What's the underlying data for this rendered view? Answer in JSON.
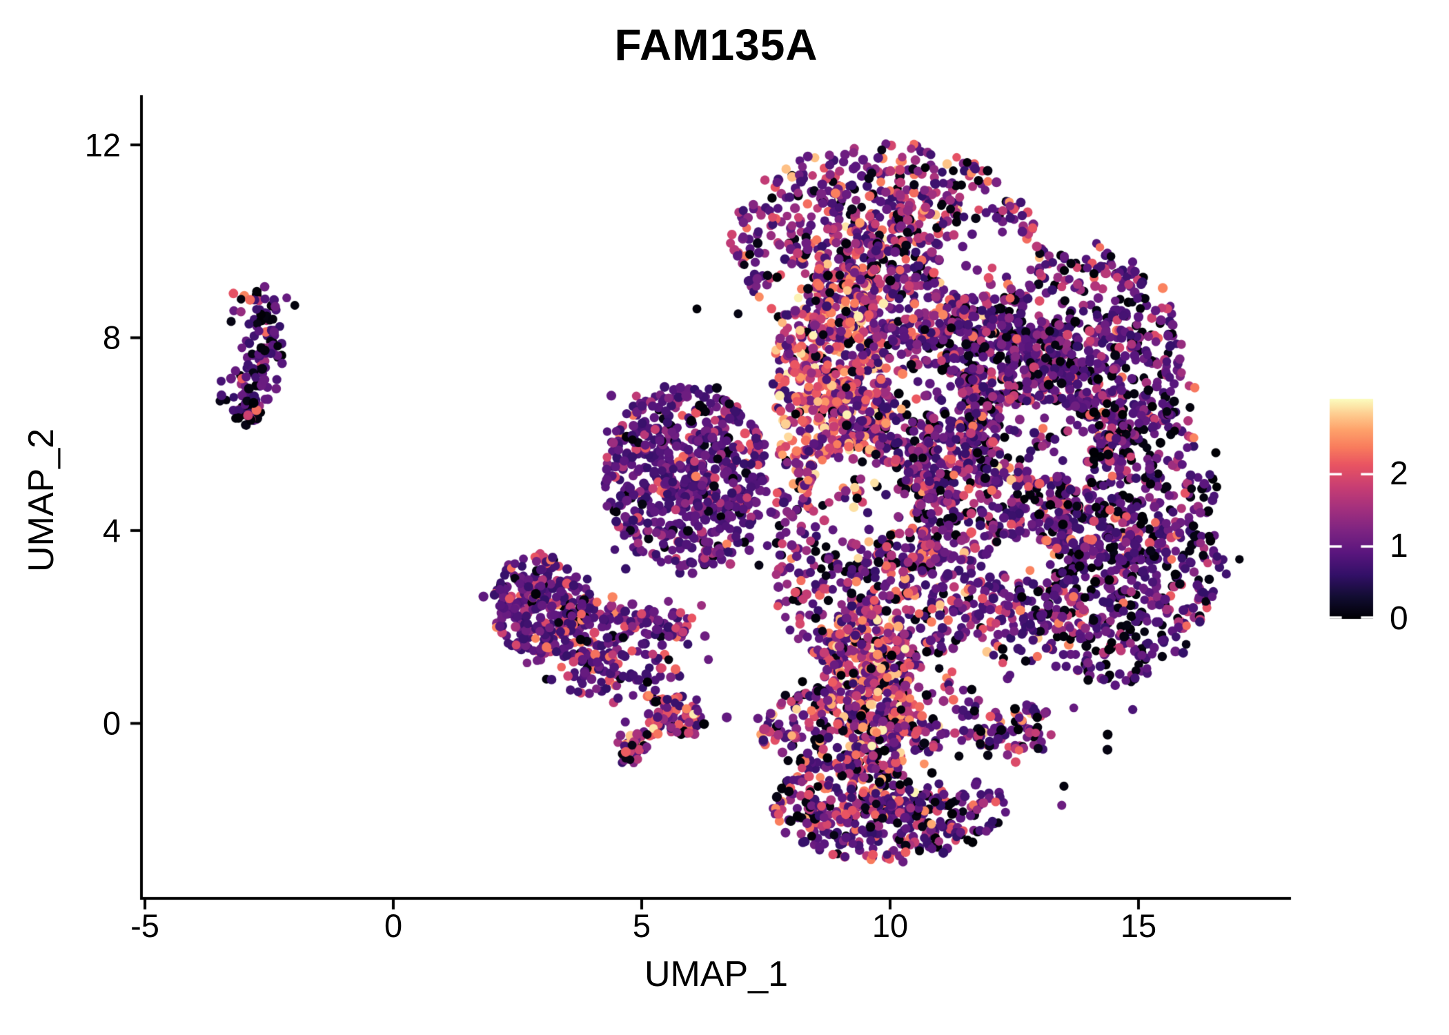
{
  "chart_data": {
    "type": "scatter",
    "title": "FAM135A",
    "xlabel": "UMAP_1",
    "ylabel": "UMAP_2",
    "xlim": [
      -5.07,
      18.07
    ],
    "ylim": [
      -3.63,
      13.03
    ],
    "x_ticks": [
      -5,
      0,
      5,
      10,
      15
    ],
    "y_ticks": [
      0,
      4,
      8,
      12
    ],
    "grid": false,
    "background": "#ffffff",
    "axis_color": "#000000",
    "point_radius": 6.7,
    "seed": 420213,
    "colorbar": {
      "position": "right",
      "ticks": [
        0,
        1,
        2
      ],
      "domain": [
        0,
        3.04
      ],
      "colormap": "magma",
      "stops": [
        [
          0.0,
          "#000004"
        ],
        [
          0.1,
          "#120d32"
        ],
        [
          0.2,
          "#331068"
        ],
        [
          0.3,
          "#5a167e"
        ],
        [
          0.4,
          "#7d2482"
        ],
        [
          0.5,
          "#a3307e"
        ],
        [
          0.6,
          "#c83e73"
        ],
        [
          0.7,
          "#e95462"
        ],
        [
          0.78,
          "#f97c5d"
        ],
        [
          0.86,
          "#fea26b"
        ],
        [
          0.93,
          "#fecd90"
        ],
        [
          1.0,
          "#fcfdbf"
        ]
      ]
    },
    "expression_bands": [
      [
        0,
        0.12
      ],
      [
        0.6,
        1.1
      ],
      [
        1.1,
        1.85
      ],
      [
        1.85,
        2.45
      ],
      [
        2.45,
        3.0
      ]
    ],
    "holes": [
      {
        "cx": 12.0,
        "cy": 9.6,
        "rx": 1.0,
        "ry": 0.8
      },
      {
        "cx": 13.1,
        "cy": 5.9,
        "rx": 0.95,
        "ry": 0.8
      },
      {
        "cx": 9.3,
        "cy": 4.7,
        "rx": 0.95,
        "ry": 0.95
      },
      {
        "cx": 11.4,
        "cy": 0.7,
        "rx": 1.0,
        "ry": 0.8
      },
      {
        "cx": 11.6,
        "cy": -0.95,
        "rx": 1.4,
        "ry": 0.5
      },
      {
        "cx": 12.6,
        "cy": 3.3,
        "rx": 0.7,
        "ry": 0.6
      },
      {
        "cx": 7.9,
        "cy": 9.0,
        "rx": 0.55,
        "ry": 0.5
      },
      {
        "cx": 10.8,
        "cy": 6.8,
        "rx": 0.6,
        "ry": 0.6
      }
    ],
    "clusters": [
      {
        "name": "left-strip",
        "shape": "strip",
        "x1": -2.68,
        "y1": 8.8,
        "x2": -2.98,
        "y2": 6.45,
        "width": 0.24,
        "bend": 0.18,
        "n": 120,
        "mix": [
          0.22,
          0.62,
          0.08,
          0.08,
          0
        ]
      },
      {
        "name": "left-tip",
        "shape": "ellipse",
        "cx": -2.9,
        "cy": 6.5,
        "rx": 0.22,
        "ry": 0.3,
        "n": 38,
        "mix": [
          0.55,
          0.38,
          0.02,
          0.05,
          0
        ]
      },
      {
        "name": "mid-main",
        "shape": "ellipse",
        "cx": 2.95,
        "cy": 2.5,
        "rx": 1.05,
        "ry": 1.05,
        "n": 270,
        "mix": [
          0.07,
          0.7,
          0.12,
          0.11,
          0
        ]
      },
      {
        "name": "mid-diag",
        "shape": "strip",
        "x1": 3.3,
        "y1": 1.75,
        "x2": 4.6,
        "y2": 0.85,
        "width": 0.42,
        "bend": 0,
        "n": 110,
        "mix": [
          0.08,
          0.62,
          0.15,
          0.15,
          0
        ]
      },
      {
        "name": "mid-tail",
        "shape": "strip",
        "x1": 3.7,
        "y1": 2.25,
        "x2": 6.15,
        "y2": 1.95,
        "width": 0.16,
        "bend": 0.12,
        "n": 85,
        "mix": [
          0.02,
          0.78,
          0.12,
          0.08,
          0
        ]
      },
      {
        "name": "mid-sparse",
        "shape": "ellipse",
        "cx": 4.6,
        "cy": 1.35,
        "rx": 1.3,
        "ry": 0.75,
        "n": 48,
        "mix": [
          0.1,
          0.6,
          0.15,
          0.15,
          0
        ]
      },
      {
        "name": "mid-warm",
        "shape": "ellipse",
        "cx": 5.55,
        "cy": 0.15,
        "rx": 0.72,
        "ry": 0.5,
        "n": 95,
        "mix": [
          0.18,
          0.25,
          0.22,
          0.27,
          0.08
        ]
      },
      {
        "name": "mid-clump",
        "shape": "ellipse",
        "cx": 4.78,
        "cy": -0.5,
        "rx": 0.3,
        "ry": 0.33,
        "n": 34,
        "mix": [
          0.2,
          0.25,
          0.2,
          0.27,
          0.08
        ]
      },
      {
        "name": "blob-top",
        "shape": "ellipse",
        "cx": 9.9,
        "cy": 9.9,
        "rx": 3.1,
        "ry": 2.1,
        "n": 850,
        "mix": [
          0.13,
          0.4,
          0.28,
          0.16,
          0.03
        ]
      },
      {
        "name": "blob-topright",
        "shape": "ellipse",
        "cx": 13.4,
        "cy": 7.6,
        "rx": 2.5,
        "ry": 2.4,
        "n": 780,
        "mix": [
          0.22,
          0.52,
          0.2,
          0.06,
          0
        ]
      },
      {
        "name": "blob-right",
        "shape": "ellipse",
        "cx": 14.5,
        "cy": 3.9,
        "rx": 2.2,
        "ry": 3.1,
        "n": 850,
        "mix": [
          0.26,
          0.5,
          0.18,
          0.06,
          0
        ]
      },
      {
        "name": "blob-left-wedge",
        "shape": "ellipse",
        "cx": 5.9,
        "cy": 5.1,
        "rx": 1.7,
        "ry": 1.9,
        "n": 600,
        "mix": [
          0.06,
          0.74,
          0.13,
          0.07,
          0
        ]
      },
      {
        "name": "blob-warm-band",
        "shape": "ellipse",
        "cx": 8.8,
        "cy": 6.9,
        "rx": 1.15,
        "ry": 2.7,
        "n": 560,
        "mix": [
          0.04,
          0.18,
          0.26,
          0.36,
          0.16
        ]
      },
      {
        "name": "blob-warm-low",
        "shape": "ellipse",
        "cx": 9.6,
        "cy": 1.0,
        "rx": 0.95,
        "ry": 1.5,
        "n": 300,
        "mix": [
          0.06,
          0.2,
          0.26,
          0.34,
          0.14
        ]
      },
      {
        "name": "blob-center",
        "shape": "ellipse",
        "cx": 10.7,
        "cy": 3.6,
        "rx": 3.3,
        "ry": 3.1,
        "n": 1050,
        "mix": [
          0.16,
          0.44,
          0.26,
          0.12,
          0.02
        ]
      },
      {
        "name": "blob-upmid",
        "shape": "ellipse",
        "cx": 11.4,
        "cy": 6.6,
        "rx": 2.6,
        "ry": 2.0,
        "n": 620,
        "mix": [
          0.15,
          0.45,
          0.27,
          0.12,
          0.01
        ]
      },
      {
        "name": "blob-bottom-band",
        "shape": "ellipse",
        "cx": 10.3,
        "cy": -0.1,
        "rx": 3.0,
        "ry": 1.05,
        "n": 520,
        "mix": [
          0.16,
          0.42,
          0.25,
          0.14,
          0.03
        ]
      },
      {
        "name": "blob-lobe",
        "shape": "ellipse",
        "cx": 10.0,
        "cy": -1.7,
        "rx": 2.35,
        "ry": 1.15,
        "n": 500,
        "mix": [
          0.2,
          0.5,
          0.16,
          0.12,
          0.02
        ]
      },
      {
        "name": "blob-halo",
        "shape": "ellipse",
        "cx": 10.6,
        "cy": 4.6,
        "rx": 6.6,
        "ry": 6.9,
        "n": 170,
        "mix": [
          0.25,
          0.45,
          0.2,
          0.1,
          0
        ]
      }
    ]
  }
}
